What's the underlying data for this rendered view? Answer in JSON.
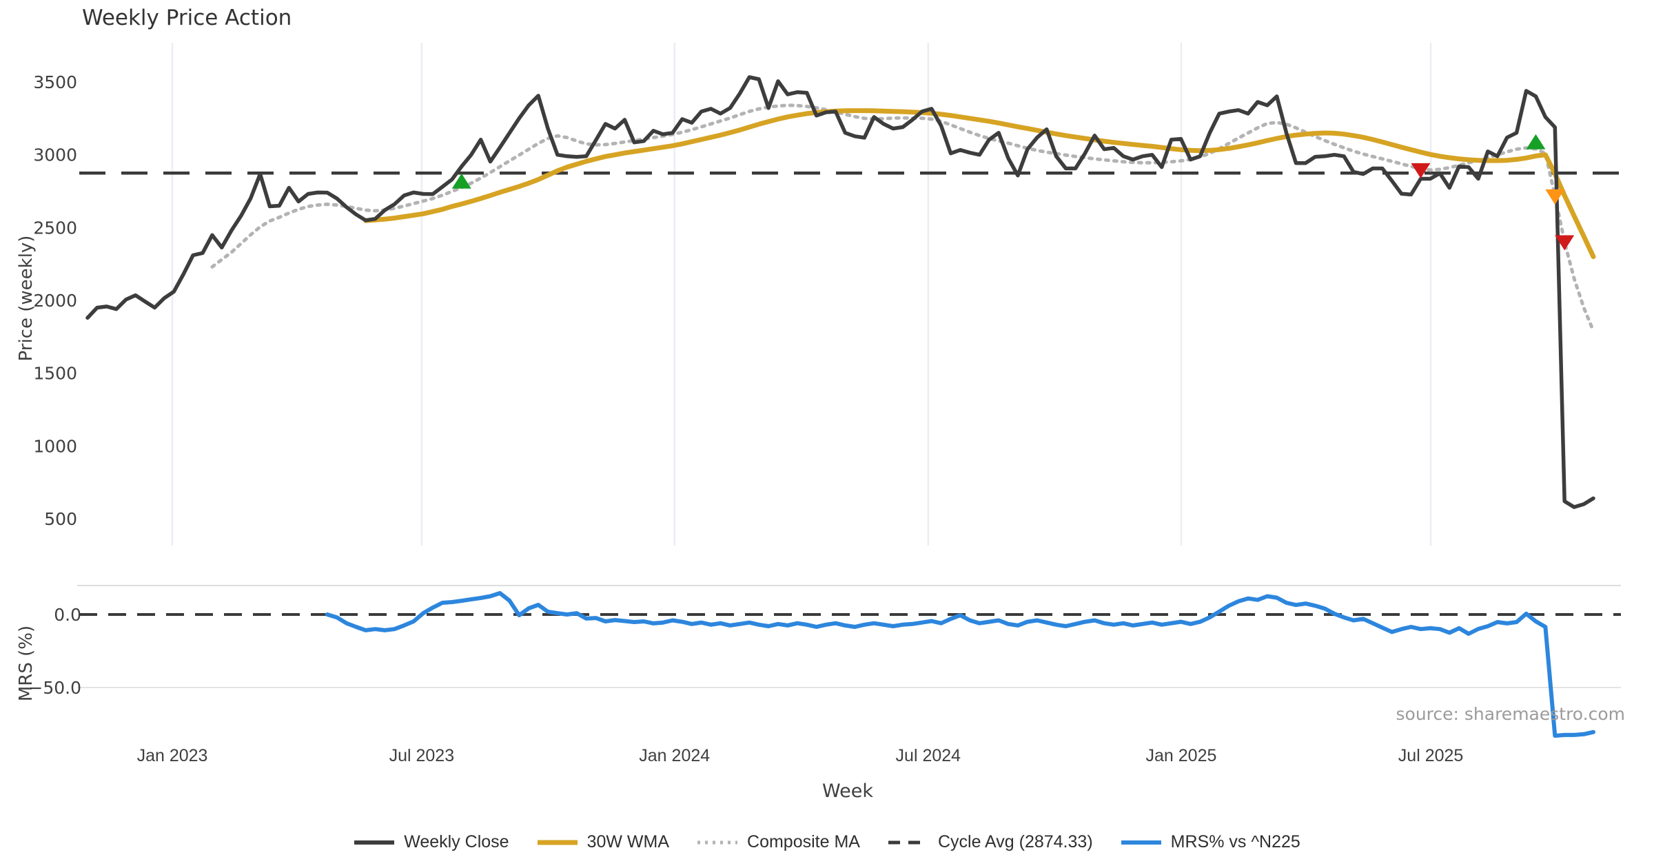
{
  "title": "Weekly Price Action",
  "source": "source: sharemaestro.com",
  "colors": {
    "weekly_close": "#3d3d3d",
    "wma30": "#d6a323",
    "composite": "#b3b3b3",
    "cycle_dash": "#3a3a3a",
    "mrs_blue": "#2d86dd",
    "grid": "#ececf4",
    "panel_grid": "#dedede",
    "marker_green": "#16a026",
    "marker_red": "#d01a1a",
    "marker_orange": "#ff9414"
  },
  "legend": [
    {
      "label": "Weekly Close",
      "style": "solid",
      "color": "#3d3d3d",
      "thickness": 6
    },
    {
      "label": "30W WMA",
      "style": "solid",
      "color": "#d6a323",
      "thickness": 7
    },
    {
      "label": "Composite MA",
      "style": "dotted",
      "color": "#b3b3b3",
      "thickness": 5
    },
    {
      "label": "Cycle Avg (2874.33)",
      "style": "dashed",
      "color": "#3a3a3a",
      "thickness": 5
    },
    {
      "label": "MRS% vs ^N225",
      "style": "solid",
      "color": "#2d86dd",
      "thickness": 6
    }
  ],
  "chart_data": {
    "type": "line",
    "x": {
      "label": "Week",
      "unit": "weeks",
      "total_weeks": 157,
      "ticks": [
        {
          "week": 8.84,
          "label": "Jan 2023"
        },
        {
          "week": 34.84,
          "label": "Jul 2023"
        },
        {
          "week": 61.2,
          "label": "Jan 2024"
        },
        {
          "week": 87.65,
          "label": "Jul 2024"
        },
        {
          "week": 114.03,
          "label": "Jan 2025"
        },
        {
          "week": 140.05,
          "label": "Jul 2025"
        }
      ]
    },
    "panels": [
      {
        "name": "price",
        "ylabel": "Price (weekly)",
        "ylim": [
          406,
          3731
        ],
        "yticks": [
          500,
          1000,
          1500,
          2000,
          2500,
          3000,
          3500
        ],
        "cycle_avg": 2874.33,
        "series": [
          {
            "name": "Weekly Close",
            "style": "solid",
            "color": "#3d3d3d",
            "start_week": 0,
            "values": [
              1880,
              1950,
              1958,
              1940,
              2005,
              2035,
              1992,
              1950,
              2015,
              2060,
              2180,
              2310,
              2325,
              2448,
              2363,
              2480,
              2580,
              2700,
              2868,
              2646,
              2650,
              2773,
              2679,
              2731,
              2741,
              2740,
              2700,
              2640,
              2590,
              2550,
              2560,
              2620,
              2660,
              2720,
              2741,
              2731,
              2730,
              2780,
              2830,
              2920,
              3000,
              3104,
              2953,
              3050,
              3150,
              3250,
              3340,
              3406,
              3180,
              3000,
              2990,
              2985,
              2990,
              3100,
              3212,
              3180,
              3240,
              3085,
              3094,
              3165,
              3141,
              3151,
              3245,
              3220,
              3297,
              3316,
              3283,
              3321,
              3420,
              3533,
              3519,
              3321,
              3505,
              3415,
              3430,
              3425,
              3269,
              3292,
              3297,
              3151,
              3127,
              3117,
              3259,
              3212,
              3180,
              3190,
              3240,
              3297,
              3316,
              3200,
              3010,
              3033,
              3014,
              3000,
              3104,
              3151,
              2976,
              2858,
              3038,
              3118,
              3175,
              2990,
              2906,
              2906,
              3010,
              3132,
              3038,
              3047,
              2990,
              2967,
              2990,
              3000,
              2915,
              3104,
              3109,
              2967,
              2990,
              3150,
              3283,
              3297,
              3307,
              3283,
              3363,
              3340,
              3401,
              3150,
              2943,
              2943,
              2986,
              2990,
              3000,
              2990,
              2882,
              2868,
              2906,
              2906,
              2821,
              2732,
              2727,
              2835,
              2835,
              2873,
              2773,
              2920,
              2915,
              2835,
              3023,
              2990,
              3118,
              3151,
              3439,
              3401,
              3259,
              3189,
              620,
              580,
              600,
              640
            ]
          },
          {
            "name": "30W WMA",
            "style": "solid",
            "color": "#d6a323",
            "start_week": 29,
            "values": [
              2548,
              2552,
              2558,
              2565,
              2575,
              2585,
              2595,
              2610,
              2625,
              2645,
              2662,
              2680,
              2700,
              2720,
              2742,
              2762,
              2782,
              2805,
              2830,
              2860,
              2890,
              2915,
              2935,
              2955,
              2972,
              2988,
              3000,
              3012,
              3022,
              3032,
              3042,
              3052,
              3062,
              3075,
              3090,
              3105,
              3120,
              3135,
              3152,
              3170,
              3190,
              3210,
              3228,
              3245,
              3260,
              3272,
              3283,
              3290,
              3296,
              3300,
              3302,
              3303,
              3303,
              3302,
              3300,
              3298,
              3296,
              3293,
              3290,
              3285,
              3278,
              3270,
              3260,
              3250,
              3240,
              3230,
              3218,
              3205,
              3192,
              3180,
              3168,
              3155,
              3143,
              3132,
              3122,
              3112,
              3102,
              3093,
              3085,
              3078,
              3071,
              3064,
              3058,
              3050,
              3042,
              3035,
              3030,
              3028,
              3030,
              3036,
              3044,
              3055,
              3068,
              3082,
              3098,
              3112,
              3125,
              3135,
              3142,
              3147,
              3150,
              3148,
              3142,
              3132,
              3120,
              3105,
              3088,
              3070,
              3052,
              3035,
              3018,
              3002,
              2990,
              2980,
              2972,
              2966,
              2962,
              2960,
              2960,
              2962,
              2968,
              2978,
              2992,
              3000,
              2870,
              2720,
              2580,
              2440,
              2300
            ]
          },
          {
            "name": "Composite MA",
            "style": "dotted",
            "color": "#b3b3b3",
            "start_week": 13,
            "values": [
              2230,
              2280,
              2330,
              2390,
              2450,
              2505,
              2545,
              2570,
              2600,
              2625,
              2645,
              2655,
              2660,
              2655,
              2645,
              2632,
              2620,
              2615,
              2620,
              2632,
              2648,
              2665,
              2682,
              2700,
              2722,
              2748,
              2775,
              2805,
              2840,
              2878,
              2918,
              2958,
              2998,
              3038,
              3078,
              3112,
              3130,
              3118,
              3095,
              3075,
              3068,
              3070,
              3078,
              3088,
              3098,
              3108,
              3118,
              3128,
              3140,
              3155,
              3172,
              3192,
              3212,
              3232,
              3252,
              3275,
              3298,
              3315,
              3328,
              3335,
              3340,
              3338,
              3332,
              3322,
              3310,
              3295,
              3278,
              3262,
              3250,
              3246,
              3248,
              3252,
              3253,
              3252,
              3251,
              3245,
              3230,
              3205,
              3180,
              3155,
              3132,
              3112,
              3095,
              3080,
              3062,
              3045,
              3030,
              3018,
              3008,
              2998,
              2988,
              2980,
              2972,
              2965,
              2958,
              2952,
              2948,
              2945,
              2945,
              2948,
              2952,
              2958,
              2968,
              2985,
              3010,
              3042,
              3078,
              3115,
              3150,
              3185,
              3215,
              3222,
              3210,
              3185,
              3155,
              3125,
              3098,
              3072,
              3048,
              3025,
              3005,
              2988,
              2972,
              2955,
              2938,
              2920,
              2905,
              2895,
              2900,
              2912,
              2928,
              2945,
              2962,
              2980,
              3000,
              3020,
              3038,
              3047,
              3040,
              3010,
              2717,
              2400,
              2150,
              1950,
              1790
            ]
          }
        ],
        "markers": [
          {
            "week": 39,
            "price": 2815,
            "direction": "up",
            "color": "#16a026"
          },
          {
            "week": 139,
            "price": 2895,
            "direction": "down",
            "color": "#d01a1a"
          },
          {
            "week": 151,
            "price": 3085,
            "direction": "up",
            "color": "#16a026"
          },
          {
            "week": 153,
            "price": 2715,
            "direction": "down",
            "color": "#ff9414"
          },
          {
            "week": 154,
            "price": 2400,
            "direction": "down",
            "color": "#d01a1a"
          }
        ]
      },
      {
        "name": "mrs",
        "ylabel": "MRS (%)",
        "ylim": [
          -88,
          20
        ],
        "yticks": [
          {
            "value": 0,
            "label": "0.0"
          },
          {
            "value": -50,
            "label": "−50.0"
          }
        ],
        "zero_line": 0,
        "series": [
          {
            "name": "MRS% vs ^N225",
            "style": "solid",
            "color": "#2d86dd",
            "start_week": 25,
            "values": [
              0.0,
              -2.0,
              -6.0,
              -8.5,
              -10.8,
              -10.0,
              -10.8,
              -10.0,
              -7.5,
              -4.7,
              0.9,
              4.7,
              8.0,
              8.5,
              9.4,
              10.4,
              11.3,
              12.5,
              14.6,
              9.5,
              -0.5,
              4.2,
              6.6,
              1.9,
              0.9,
              0.0,
              0.9,
              -2.8,
              -2.4,
              -4.7,
              -3.8,
              -4.5,
              -5.2,
              -4.7,
              -6.1,
              -5.5,
              -4.0,
              -5.0,
              -6.5,
              -5.5,
              -7.0,
              -6.0,
              -7.5,
              -6.5,
              -5.5,
              -7.0,
              -8.0,
              -6.5,
              -7.5,
              -6.0,
              -7.0,
              -8.5,
              -7.0,
              -6.0,
              -7.5,
              -8.5,
              -7.0,
              -6.0,
              -7.0,
              -8.0,
              -7.0,
              -6.5,
              -5.5,
              -4.5,
              -6.0,
              -3.0,
              -0.5,
              -4.0,
              -6.0,
              -5.0,
              -4.0,
              -6.5,
              -7.5,
              -5.0,
              -4.0,
              -5.5,
              -7.0,
              -8.0,
              -6.5,
              -5.0,
              -4.0,
              -6.0,
              -7.0,
              -6.0,
              -7.5,
              -6.5,
              -5.5,
              -7.0,
              -6.0,
              -5.0,
              -6.5,
              -5.0,
              -2.0,
              2.0,
              6.0,
              9.0,
              11.0,
              10.0,
              12.5,
              11.5,
              8.0,
              6.5,
              7.5,
              6.0,
              4.0,
              0.5,
              -2.0,
              -4.0,
              -3.0,
              -6.0,
              -9.0,
              -12.0,
              -10.0,
              -8.5,
              -10.0,
              -9.4,
              -10.0,
              -12.5,
              -9.4,
              -13.2,
              -9.9,
              -8.0,
              -5.2,
              -6.1,
              -5.2,
              0.5,
              -4.7,
              -8.5,
              -83.0,
              -82.5,
              -82.5,
              -82.0,
              -80.5
            ]
          }
        ]
      }
    ]
  }
}
